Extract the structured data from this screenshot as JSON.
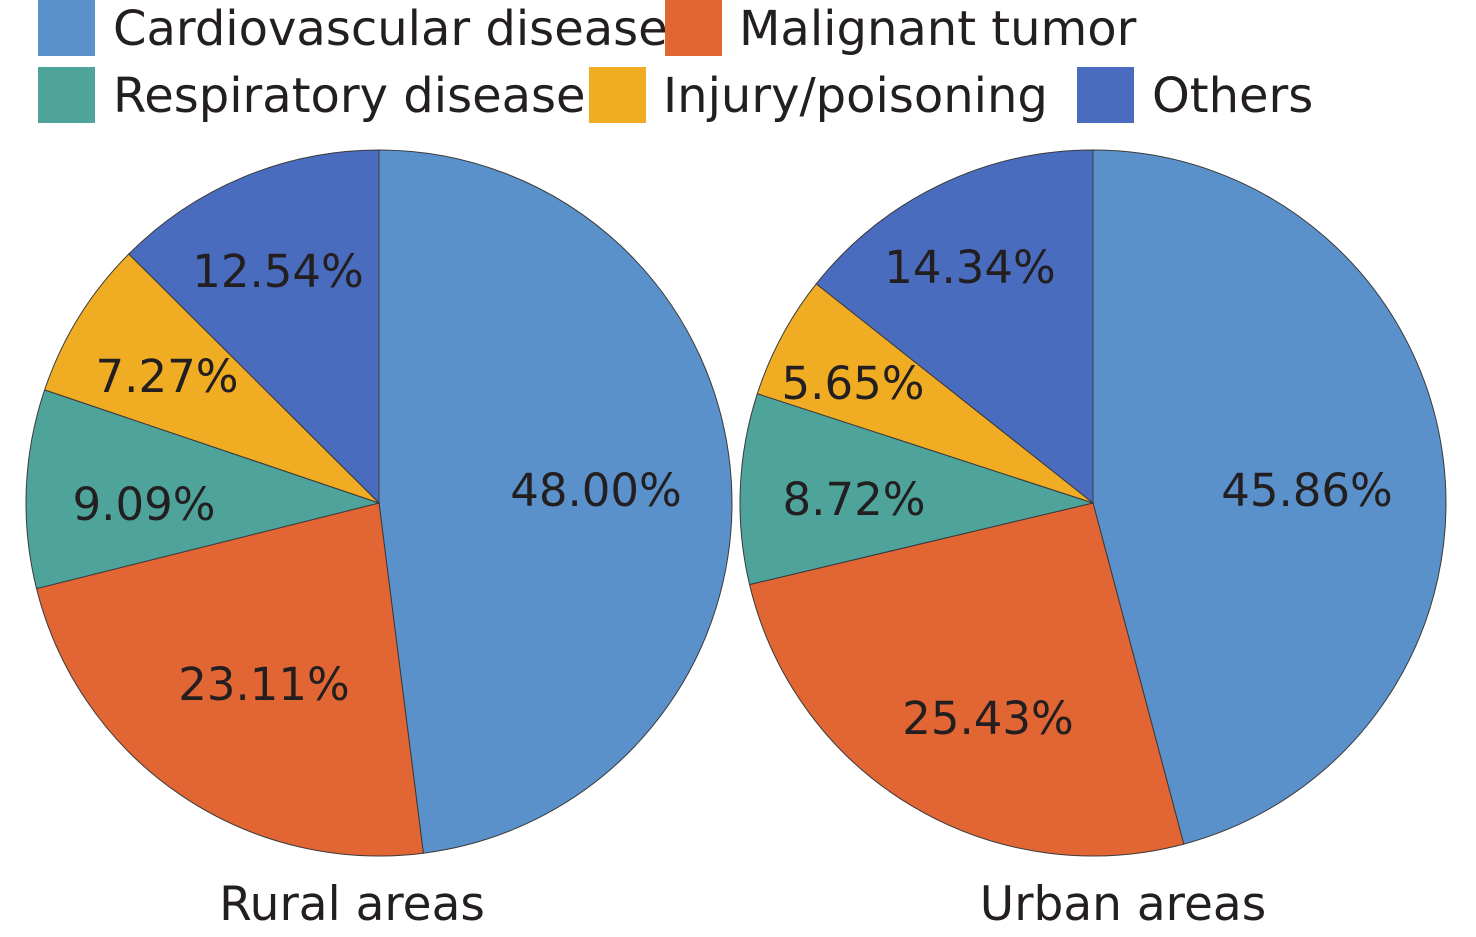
{
  "chart_data": {
    "type": "pie",
    "legend_position": "top",
    "categories": [
      {
        "name": "Cardiovascular disease",
        "color": "#5b91cb"
      },
      {
        "name": "Malignant tumor",
        "color": "#e26634"
      },
      {
        "name": "Respiratory disease",
        "color": "#4ea49b"
      },
      {
        "name": "Injury/poisoning",
        "color": "#f0ad24"
      },
      {
        "name": "Others",
        "color": "#4a6cbe"
      }
    ],
    "pies": [
      {
        "title": "Rural areas",
        "values": [
          48.0,
          23.11,
          9.09,
          7.27,
          12.54
        ],
        "labels": [
          "48.00%",
          "23.11%",
          "9.09%",
          "7.27%",
          "12.54%"
        ]
      },
      {
        "title": "Urban areas",
        "values": [
          45.86,
          25.43,
          8.72,
          5.65,
          14.34
        ],
        "labels": [
          "45.86%",
          "25.43%",
          "8.72%",
          "5.65%",
          "14.34%"
        ]
      }
    ]
  }
}
